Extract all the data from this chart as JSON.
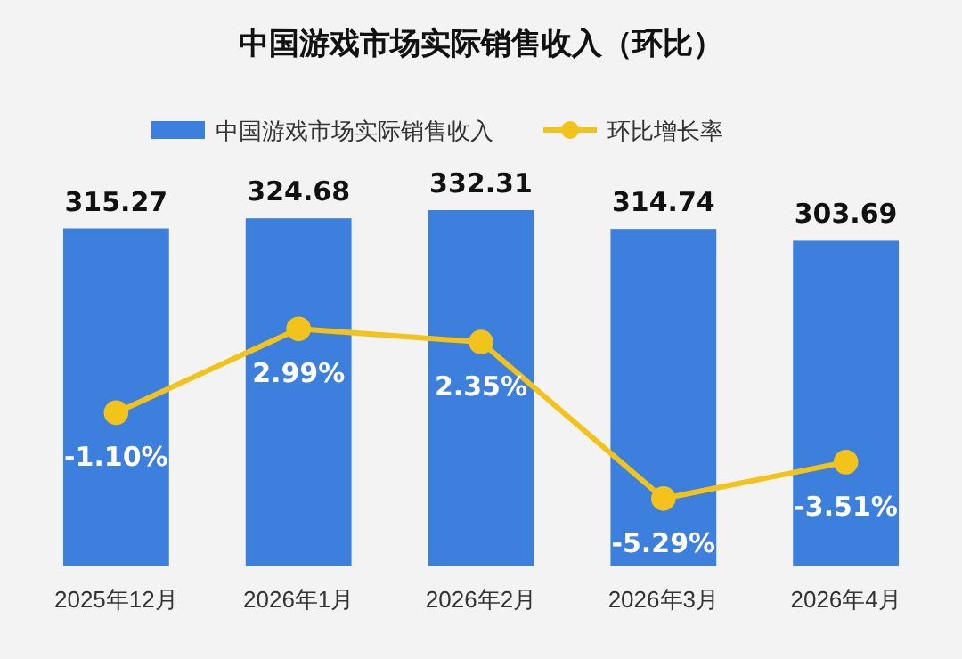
{
  "chart_data": {
    "type": "bar",
    "title": "中国游戏市场实际销售收入（环比）",
    "categories": [
      "2025年12月",
      "2026年1月",
      "2026年2月",
      "2026年3月",
      "2026年4月"
    ],
    "series": [
      {
        "name": "中国游戏市场实际销售收入",
        "color": "#3d7fdc",
        "values": [
          315.27,
          324.68,
          332.31,
          314.74,
          303.69
        ],
        "value_labels": [
          "315.27",
          "324.68",
          "332.31",
          "314.74",
          "303.69"
        ]
      },
      {
        "name": "环比增长率",
        "type": "line",
        "axis": "y2",
        "color": "#f2c31b",
        "marker": "circle",
        "values": [
          -1.1,
          2.99,
          2.35,
          -5.29,
          -3.51
        ],
        "value_labels": [
          "-1.10%",
          "2.99%",
          "2.35%",
          "-5.29%",
          "-3.51%"
        ]
      }
    ],
    "legend": "top",
    "grid": false,
    "tick_labels": "x"
  }
}
